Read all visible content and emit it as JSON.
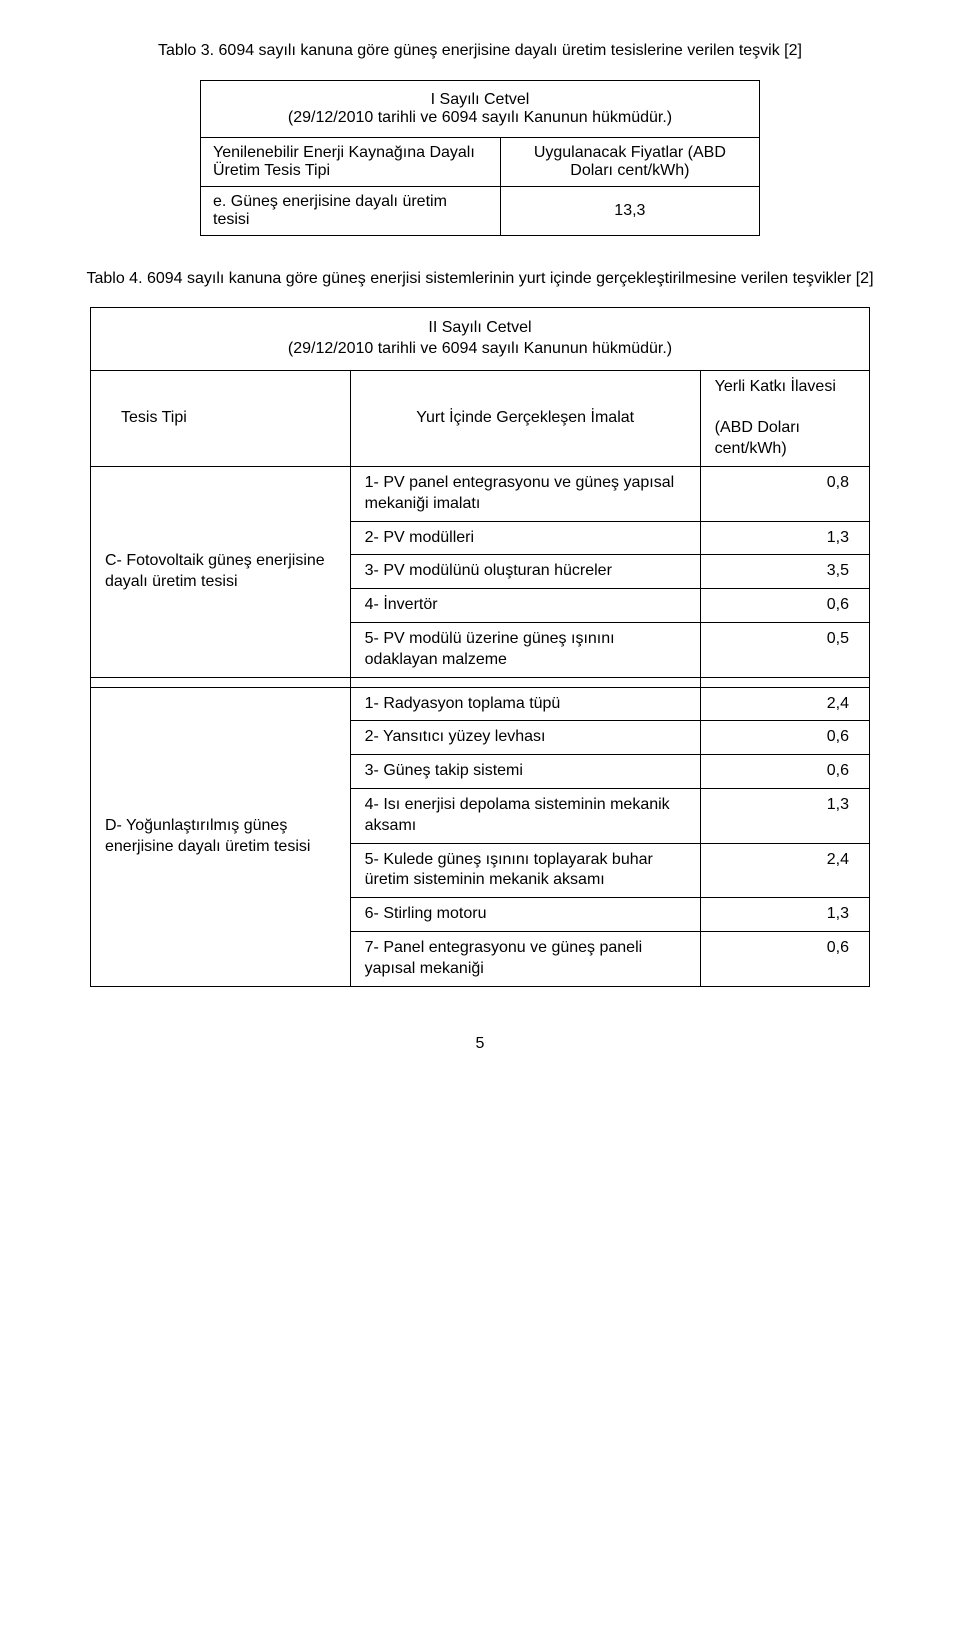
{
  "figure1": {
    "caption": "Tablo 3. 6094 sayılı kanuna göre güneş enerjisine dayalı üretim tesislerine verilen teşvik [2]",
    "header": "I Sayılı Cetvel\n(29/12/2010 tarihli ve 6094 sayılı Kanunun hükmüdür.)",
    "col1_label": "Yenilenebilir Enerji Kaynağına Dayalı Üretim Tesis Tipi",
    "col2_label": "Uygulanacak Fiyatlar (ABD Doları cent/kWh)",
    "row1_label": "e. Güneş enerjisine dayalı üretim tesisi",
    "row1_value": "13,3"
  },
  "figure2": {
    "caption": "Tablo 4. 6094 sayılı kanuna göre güneş enerjisi sistemlerinin yurt içinde gerçekleştirilmesine verilen teşvikler [2]",
    "header": "II Sayılı Cetvel\n(29/12/2010 tarihli ve 6094 sayılı Kanunun hükmüdür.)",
    "col0_label": "Tesis Tipi",
    "col1_label": "Yurt İçinde Gerçekleşen İmalat",
    "col2_label_top": "Yerli Katkı İlavesi",
    "col2_label_bot": "(ABD Doları cent/kWh)",
    "groupC": {
      "label": "C- Fotovoltaik güneş enerjisine dayalı üretim tesisi",
      "rows": [
        {
          "item": "1- PV panel entegrasyonu ve güneş yapısal mekaniği imalatı",
          "val": "0,8"
        },
        {
          "item": "2- PV modülleri",
          "val": "1,3"
        },
        {
          "item": "3- PV modülünü oluşturan hücreler",
          "val": "3,5"
        },
        {
          "item": "4- İnvertör",
          "val": "0,6"
        },
        {
          "item": "5- PV modülü üzerine güneş ışınını odaklayan malzeme",
          "val": "0,5"
        }
      ]
    },
    "groupD": {
      "label": "D- Yoğunlaştırılmış güneş enerjisine dayalı üretim tesisi",
      "rows": [
        {
          "item": "1- Radyasyon toplama tüpü",
          "val": "2,4"
        },
        {
          "item": "2- Yansıtıcı yüzey levhası",
          "val": "0,6"
        },
        {
          "item": "3- Güneş takip sistemi",
          "val": "0,6"
        },
        {
          "item": "4- Isı enerjisi depolama sisteminin mekanik aksamı",
          "val": "1,3"
        },
        {
          "item": "5- Kulede güneş ışınını toplayarak buhar üretim sisteminin mekanik aksamı",
          "val": "2,4"
        },
        {
          "item": "6- Stirling motoru",
          "val": "1,3"
        },
        {
          "item": "7- Panel entegrasyonu ve güneş paneli yapısal mekaniği",
          "val": "0,6"
        }
      ]
    }
  },
  "page_number": "5"
}
